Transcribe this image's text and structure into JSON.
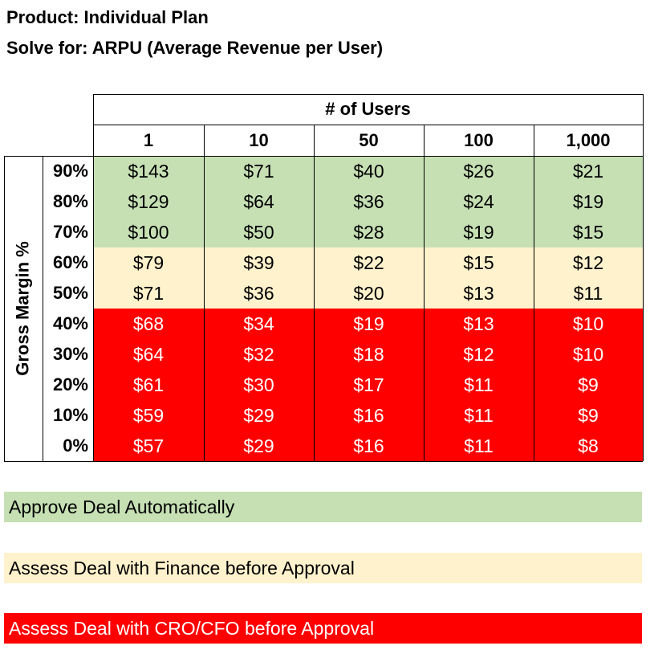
{
  "titles": {
    "product": "Product: Individual Plan",
    "solve_for": "Solve for: ARPU (Average Revenue per User)"
  },
  "chart_data": {
    "type": "table",
    "column_group_label": "# of Users",
    "row_group_label": "Gross Margin %",
    "columns": [
      "1",
      "10",
      "50",
      "100",
      "1,000"
    ],
    "rows": [
      "90%",
      "80%",
      "70%",
      "60%",
      "50%",
      "40%",
      "30%",
      "20%",
      "10%",
      "0%"
    ],
    "values": [
      [
        "$143",
        "$71",
        "$40",
        "$26",
        "$21"
      ],
      [
        "$129",
        "$64",
        "$36",
        "$24",
        "$19"
      ],
      [
        "$100",
        "$50",
        "$28",
        "$19",
        "$15"
      ],
      [
        "$79",
        "$39",
        "$22",
        "$15",
        "$12"
      ],
      [
        "$71",
        "$36",
        "$20",
        "$13",
        "$11"
      ],
      [
        "$68",
        "$34",
        "$19",
        "$13",
        "$10"
      ],
      [
        "$64",
        "$32",
        "$18",
        "$12",
        "$10"
      ],
      [
        "$61",
        "$30",
        "$17",
        "$11",
        "$9"
      ],
      [
        "$59",
        "$29",
        "$16",
        "$11",
        "$9"
      ],
      [
        "$57",
        "$29",
        "$16",
        "$11",
        "$8"
      ]
    ],
    "row_band": [
      "approve",
      "approve",
      "approve",
      "assess_finance",
      "assess_finance",
      "assess_cro_cfo",
      "assess_cro_cfo",
      "assess_cro_cfo",
      "assess_cro_cfo",
      "assess_cro_cfo"
    ]
  },
  "legend": [
    {
      "key": "approve",
      "label": "Approve Deal Automatically",
      "color": "#C6E0B4"
    },
    {
      "key": "assess_finance",
      "label": "Assess Deal with Finance before Approval",
      "color": "#FFF2CC"
    },
    {
      "key": "assess_cro_cfo",
      "label": "Assess Deal with CRO/CFO before Approval",
      "color": "#FF0000"
    }
  ]
}
